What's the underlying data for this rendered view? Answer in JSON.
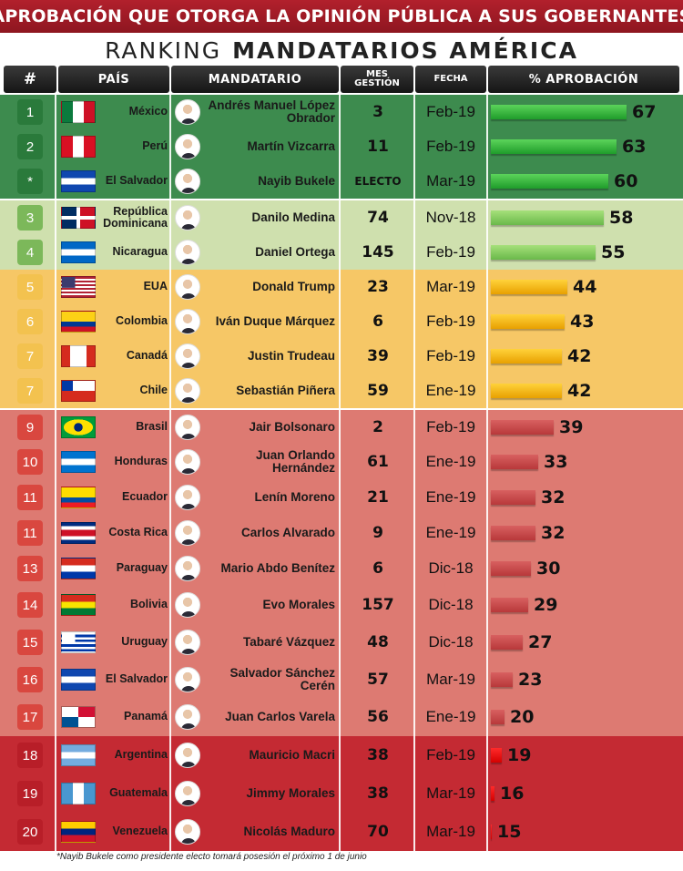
{
  "banner": "APROBACIÓN QUE OTORGA LA OPINIÓN PÚBLICA A SUS GOBERNANTES",
  "subtitle": {
    "prefix": "RANKING",
    "main": "MANDATARIOS AMÉRICA"
  },
  "headers": {
    "rank": "#",
    "country": "PAÍS",
    "leader": "MANDATARIO",
    "months_line1": "MES",
    "months_line2": "GESTIÓN",
    "date": "FECHA",
    "approval": "% APROBACIÓN"
  },
  "footnote": "*Nayib Bukele como presidente electo tomará posesión el próximo 1 de junio",
  "colors": {
    "green_dark": "#2e7d3e",
    "green_light": "#c8dca4",
    "yellow": "#f7c35a",
    "red_light": "#db6d66",
    "red_dark": "#c0232e"
  },
  "chart_data": {
    "type": "bar",
    "title": "APROBACIÓN QUE OTORGA LA OPINIÓN PÚBLICA A SUS GOBERNANTES",
    "subtitle": "RANKING MANDATARIOS AMÉRICA",
    "orientation": "horizontal",
    "value_label": "% APROBACIÓN",
    "xlim": [
      0,
      70
    ],
    "rows": [
      {
        "rank": "1",
        "country": "México",
        "flag": "mexico-flag-icon",
        "leader": "Andrés Manuel López Obrador",
        "months": "3",
        "date": "Feb-19",
        "approval": 67,
        "tier": "green_dark"
      },
      {
        "rank": "2",
        "country": "Perú",
        "flag": "peru-flag-icon",
        "leader": "Martín Vizcarra",
        "months": "11",
        "date": "Feb-19",
        "approval": 63,
        "tier": "green_dark"
      },
      {
        "rank": "*",
        "country": "El Salvador",
        "flag": "el-salvador-flag-icon",
        "leader": "Nayib Bukele",
        "months": "ELECTO",
        "date": "Mar-19",
        "approval": 60,
        "tier": "green_dark"
      },
      {
        "rank": "3",
        "country": "República Dominicana",
        "flag": "dominican-republic-flag-icon",
        "leader": "Danilo Medina",
        "months": "74",
        "date": "Nov-18",
        "approval": 58,
        "tier": "green_light"
      },
      {
        "rank": "4",
        "country": "Nicaragua",
        "flag": "nicaragua-flag-icon",
        "leader": "Daniel Ortega",
        "months": "145",
        "date": "Feb-19",
        "approval": 55,
        "tier": "green_light"
      },
      {
        "rank": "5",
        "country": "EUA",
        "flag": "usa-flag-icon",
        "leader": "Donald Trump",
        "months": "23",
        "date": "Mar-19",
        "approval": 44,
        "tier": "yellow"
      },
      {
        "rank": "6",
        "country": "Colombia",
        "flag": "colombia-flag-icon",
        "leader": "Iván Duque Márquez",
        "months": "6",
        "date": "Feb-19",
        "approval": 43,
        "tier": "yellow"
      },
      {
        "rank": "7",
        "country": "Canadá",
        "flag": "canada-flag-icon",
        "leader": "Justin Trudeau",
        "months": "39",
        "date": "Feb-19",
        "approval": 42,
        "tier": "yellow"
      },
      {
        "rank": "7",
        "country": "Chile",
        "flag": "chile-flag-icon",
        "leader": "Sebastián Piñera",
        "months": "59",
        "date": "Ene-19",
        "approval": 42,
        "tier": "yellow"
      },
      {
        "rank": "9",
        "country": "Brasil",
        "flag": "brazil-flag-icon",
        "leader": "Jair Bolsonaro",
        "months": "2",
        "date": "Feb-19",
        "approval": 39,
        "tier": "red_light"
      },
      {
        "rank": "10",
        "country": "Honduras",
        "flag": "honduras-flag-icon",
        "leader": "Juan Orlando Hernández",
        "months": "61",
        "date": "Ene-19",
        "approval": 33,
        "tier": "red_light"
      },
      {
        "rank": "11",
        "country": "Ecuador",
        "flag": "ecuador-flag-icon",
        "leader": "Lenín Moreno",
        "months": "21",
        "date": "Ene-19",
        "approval": 32,
        "tier": "red_light"
      },
      {
        "rank": "11",
        "country": "Costa Rica",
        "flag": "costa-rica-flag-icon",
        "leader": "Carlos Alvarado",
        "months": "9",
        "date": "Ene-19",
        "approval": 32,
        "tier": "red_light"
      },
      {
        "rank": "13",
        "country": "Paraguay",
        "flag": "paraguay-flag-icon",
        "leader": "Mario Abdo Benítez",
        "months": "6",
        "date": "Dic-18",
        "approval": 30,
        "tier": "red_light"
      },
      {
        "rank": "14",
        "country": "Bolivia",
        "flag": "bolivia-flag-icon",
        "leader": "Evo Morales",
        "months": "157",
        "date": "Dic-18",
        "approval": 29,
        "tier": "red_light"
      },
      {
        "rank": "15",
        "country": "Uruguay",
        "flag": "uruguay-flag-icon",
        "leader": "Tabaré Vázquez",
        "months": "48",
        "date": "Dic-18",
        "approval": 27,
        "tier": "red_light"
      },
      {
        "rank": "16",
        "country": "El Salvador",
        "flag": "el-salvador-flag-icon",
        "leader": "Salvador Sánchez Cerén",
        "months": "57",
        "date": "Mar-19",
        "approval": 23,
        "tier": "red_light"
      },
      {
        "rank": "17",
        "country": "Panamá",
        "flag": "panama-flag-icon",
        "leader": "Juan Carlos Varela",
        "months": "56",
        "date": "Ene-19",
        "approval": 20,
        "tier": "red_light"
      },
      {
        "rank": "18",
        "country": "Argentina",
        "flag": "argentina-flag-icon",
        "leader": "Mauricio Macri",
        "months": "38",
        "date": "Feb-19",
        "approval": 19,
        "tier": "red_dark"
      },
      {
        "rank": "19",
        "country": "Guatemala",
        "flag": "guatemala-flag-icon",
        "leader": "Jimmy Morales",
        "months": "38",
        "date": "Mar-19",
        "approval": 16,
        "tier": "red_dark"
      },
      {
        "rank": "20",
        "country": "Venezuela",
        "flag": "venezuela-flag-icon",
        "leader": "Nicolás Maduro",
        "months": "70",
        "date": "Mar-19",
        "approval": 15,
        "tier": "red_dark"
      }
    ]
  }
}
